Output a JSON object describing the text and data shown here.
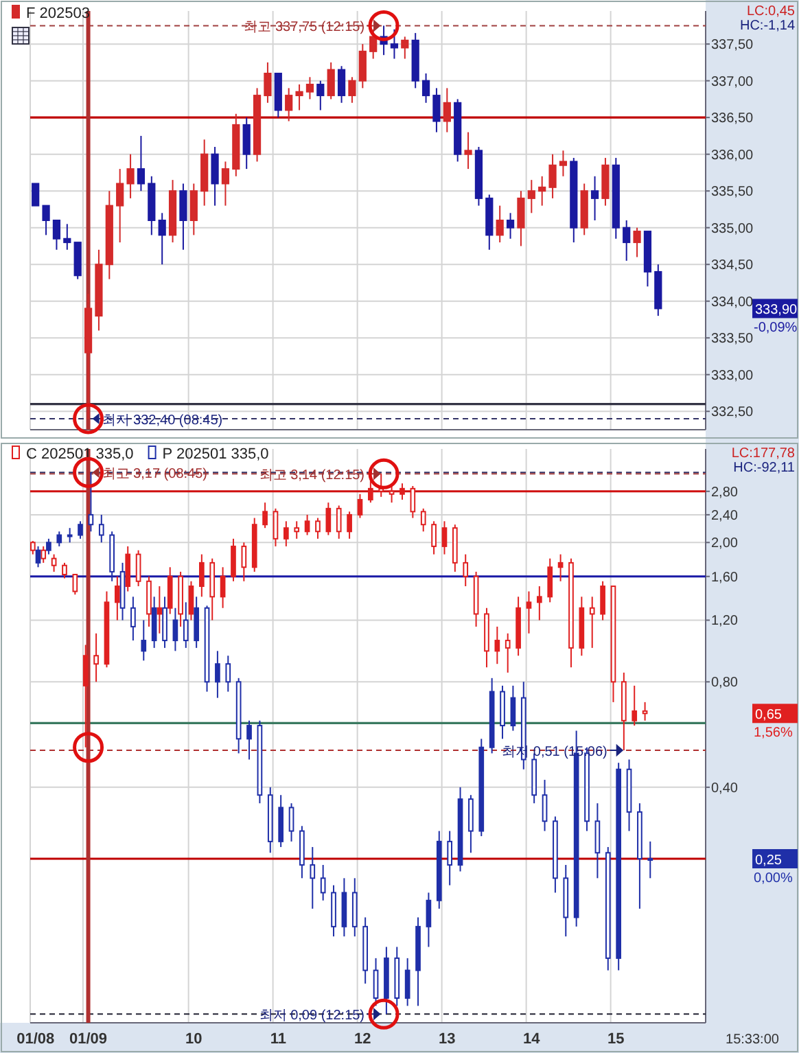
{
  "chart_data": [
    {
      "type": "candlestick",
      "legend": "top left",
      "grid": true,
      "tick_labels": "y",
      "categories": [
        "01/08",
        null,
        null,
        null,
        null,
        "01/09",
        null,
        null,
        null,
        null,
        null,
        null,
        null,
        null,
        null,
        "10",
        null,
        null,
        null,
        null,
        null,
        null,
        null,
        "11",
        null,
        null,
        null,
        null,
        null,
        null,
        null,
        "12",
        null,
        null,
        null,
        null,
        null,
        null,
        null,
        "13",
        null,
        null,
        null,
        null,
        null,
        null,
        null,
        "14",
        null,
        null,
        null,
        null,
        null,
        null,
        null,
        "15",
        null,
        null,
        null,
        null,
        null,
        null,
        null,
        null
      ],
      "ylim": [
        332.25,
        337.95
      ],
      "yticks": [
        {
          "value": 332.5,
          "label": "332,50"
        },
        {
          "value": 333,
          "label": "333,00"
        },
        {
          "value": 333.5,
          "label": "333,50"
        },
        {
          "value": 334,
          "label": "334,00"
        },
        {
          "value": 334.5,
          "label": "334,50"
        },
        {
          "value": 335,
          "label": "335,00"
        },
        {
          "value": 335.5,
          "label": "335,50"
        },
        {
          "value": 336,
          "label": "336,00"
        },
        {
          "value": 336.5,
          "label": "336,50"
        },
        {
          "value": 337,
          "label": "337,00"
        },
        {
          "value": 337.5,
          "label": "337,50"
        }
      ],
      "series": [
        {
          "name": "F 202503",
          "color": "#d42a2a",
          "ohlc": [
            [
              335.6,
              335.6,
              335.3,
              335.3
            ],
            [
              335.3,
              335.3,
              334.9,
              335.1
            ],
            [
              335.1,
              335.1,
              334.7,
              334.85
            ],
            [
              334.85,
              335.05,
              334.7,
              334.8
            ],
            [
              334.8,
              334.8,
              334.3,
              334.35
            ],
            [
              333.3,
              334.1,
              332.4,
              333.9
            ],
            [
              333.8,
              334.7,
              333.6,
              334.5
            ],
            [
              334.5,
              335.5,
              334.3,
              335.3
            ],
            [
              335.3,
              335.8,
              334.8,
              335.6
            ],
            [
              335.6,
              336,
              335.4,
              335.8
            ],
            [
              335.8,
              336.25,
              335.5,
              335.6
            ],
            [
              335.6,
              335.7,
              334.9,
              335.1
            ],
            [
              335.1,
              335.2,
              334.5,
              334.9
            ],
            [
              334.9,
              335.65,
              334.8,
              335.5
            ],
            [
              335.5,
              335.6,
              334.7,
              335.1
            ],
            [
              335.1,
              335.6,
              334.9,
              335.5
            ],
            [
              335.5,
              336.2,
              335.3,
              336
            ],
            [
              336,
              336.1,
              335.3,
              335.6
            ],
            [
              335.6,
              335.9,
              335.3,
              335.8
            ],
            [
              335.8,
              336.55,
              335.7,
              336.4
            ],
            [
              336.4,
              336.5,
              335.8,
              336
            ],
            [
              336,
              336.9,
              335.9,
              336.8
            ],
            [
              336.8,
              337.25,
              336.7,
              337.1
            ],
            [
              337.1,
              337.1,
              336.5,
              336.6
            ],
            [
              336.6,
              336.9,
              336.45,
              336.8
            ],
            [
              336.8,
              336.95,
              336.6,
              336.85
            ],
            [
              336.85,
              337.05,
              336.75,
              336.95
            ],
            [
              336.95,
              337,
              336.6,
              336.8
            ],
            [
              336.8,
              337.25,
              336.75,
              337.15
            ],
            [
              337.15,
              337.2,
              336.7,
              336.8
            ],
            [
              336.8,
              337.05,
              336.7,
              337
            ],
            [
              337,
              337.5,
              336.9,
              337.4
            ],
            [
              337.4,
              337.7,
              337.3,
              337.6
            ],
            [
              337.6,
              337.75,
              337.35,
              337.5
            ],
            [
              337.5,
              337.7,
              337.3,
              337.45
            ],
            [
              337.45,
              337.6,
              337.3,
              337.55
            ],
            [
              337.55,
              337.65,
              336.9,
              337
            ],
            [
              337,
              337.1,
              336.7,
              336.8
            ],
            [
              336.8,
              336.9,
              336.3,
              336.45
            ],
            [
              336.45,
              336.9,
              336.3,
              336.7
            ],
            [
              336.7,
              336.75,
              335.9,
              336
            ],
            [
              336,
              336.3,
              335.8,
              336.05
            ],
            [
              336.05,
              336.1,
              335.3,
              335.4
            ],
            [
              335.4,
              335.45,
              334.7,
              334.9
            ],
            [
              334.9,
              335.3,
              334.8,
              335.1
            ],
            [
              335.1,
              335.2,
              334.85,
              335
            ],
            [
              335,
              335.5,
              334.75,
              335.4
            ],
            [
              335.4,
              335.65,
              335.2,
              335.5
            ],
            [
              335.5,
              335.7,
              335.3,
              335.55
            ],
            [
              335.55,
              336,
              335.4,
              335.85
            ],
            [
              335.85,
              336.05,
              335.7,
              335.9
            ],
            [
              335.9,
              335.95,
              334.8,
              335
            ],
            [
              335,
              335.6,
              334.9,
              335.5
            ],
            [
              335.5,
              335.7,
              335.1,
              335.4
            ],
            [
              335.4,
              335.95,
              335.3,
              335.85
            ],
            [
              335.85,
              335.95,
              334.85,
              335
            ],
            [
              335,
              335.1,
              334.55,
              334.8
            ],
            [
              334.8,
              335,
              334.6,
              334.95
            ],
            [
              334.95,
              334.95,
              334.2,
              334.4
            ],
            [
              334.4,
              334.5,
              333.8,
              333.9
            ],
            null,
            null,
            null,
            null
          ],
          "colors": [
            "#1a1aa0",
            "#1a1aa0",
            "#1a1aa0",
            "#1a1aa0",
            "#1a1aa0",
            "#d42a2a",
            "#d42a2a",
            "#d42a2a",
            "#d42a2a",
            "#d42a2a",
            "#1a1aa0",
            "#1a1aa0",
            "#1a1aa0",
            "#d42a2a",
            "#1a1aa0",
            "#d42a2a",
            "#d42a2a",
            "#1a1aa0",
            "#d42a2a",
            "#d42a2a",
            "#1a1aa0",
            "#d42a2a",
            "#d42a2a",
            "#1a1aa0",
            "#d42a2a",
            "#d42a2a",
            "#d42a2a",
            "#1a1aa0",
            "#d42a2a",
            "#1a1aa0",
            "#d42a2a",
            "#d42a2a",
            "#d42a2a",
            "#1a1aa0",
            "#1a1aa0",
            "#d42a2a",
            "#1a1aa0",
            "#1a1aa0",
            "#1a1aa0",
            "#d42a2a",
            "#1a1aa0",
            "#d42a2a",
            "#1a1aa0",
            "#1a1aa0",
            "#d42a2a",
            "#1a1aa0",
            "#d42a2a",
            "#d42a2a",
            "#d42a2a",
            "#d42a2a",
            "#d42a2a",
            "#1a1aa0",
            "#d42a2a",
            "#1a1aa0",
            "#d42a2a",
            "#1a1aa0",
            "#1a1aa0",
            "#d42a2a",
            "#1a1aa0",
            "#1a1aa0",
            null,
            null,
            null,
            null
          ]
        }
      ],
      "ref_lines": [
        {
          "axis": "y",
          "value": 336.5,
          "color": "#c00000"
        },
        {
          "axis": "y",
          "value": 332.6,
          "color": "#333344"
        },
        {
          "axis": "y",
          "value": 337.75,
          "color": "#a04040",
          "line_style": "dashed"
        },
        {
          "axis": "y",
          "value": 332.4,
          "color": "#333366",
          "line_style": "dashed"
        },
        {
          "axis": "x",
          "value": "01/09",
          "color": "#b03030"
        }
      ],
      "annotations": [
        "LC:0,45",
        "HC:-1,14",
        "333,90",
        "-0,09%",
        {
          "text": "최고 337,75 (12:15)",
          "y": 337.75
        },
        {
          "text": "최저 332,40 (08:45)",
          "y": 332.4
        }
      ]
    },
    {
      "type": "candlestick",
      "legend": "top left",
      "grid": true,
      "log": true,
      "xlabel": "15:33:00",
      "categories": [
        "01/08",
        null,
        null,
        null,
        null,
        "01/09",
        null,
        null,
        null,
        null,
        null,
        null,
        null,
        null,
        null,
        "10",
        null,
        null,
        null,
        null,
        null,
        null,
        null,
        "11",
        null,
        null,
        null,
        null,
        null,
        null,
        null,
        "12",
        null,
        null,
        null,
        null,
        null,
        null,
        null,
        "13",
        null,
        null,
        null,
        null,
        null,
        null,
        null,
        "14",
        null,
        null,
        null,
        null,
        null,
        null,
        null,
        "15",
        null,
        null,
        null,
        null,
        null,
        null,
        null,
        null
      ],
      "ylim": [
        0.085,
        3.7
      ],
      "yticks": [
        {
          "value": 0.4,
          "label": "0,40"
        },
        {
          "value": 0.8,
          "label": "0,80"
        },
        {
          "value": 1.2,
          "label": "1,20"
        },
        {
          "value": 1.6,
          "label": "1,60"
        },
        {
          "value": 2,
          "label": "2,00"
        },
        {
          "value": 2.4,
          "label": "2,40"
        },
        {
          "value": 2.8,
          "label": "2,80"
        }
      ],
      "series": [
        {
          "name": "C 202501 335,0",
          "color": "#e02020",
          "ohlc": [
            [
              2,
              2.02,
              1.85,
              1.9
            ],
            [
              1.9,
              1.95,
              1.75,
              1.8
            ],
            [
              1.8,
              1.85,
              1.65,
              1.72
            ],
            [
              1.72,
              1.75,
              1.58,
              1.62
            ],
            [
              1.62,
              1.62,
              1.42,
              1.45
            ],
            [
              0.78,
              1.02,
              0.52,
              0.95
            ],
            [
              0.95,
              1.1,
              0.8,
              0.9
            ],
            [
              0.9,
              1.45,
              0.88,
              1.35
            ],
            [
              1.35,
              1.6,
              1.2,
              1.5
            ],
            [
              1.5,
              1.95,
              1.45,
              1.85
            ],
            [
              1.85,
              1.9,
              1.5,
              1.55
            ],
            [
              1.55,
              1.6,
              1.15,
              1.25
            ],
            [
              1.25,
              1.5,
              1.1,
              1.3
            ],
            [
              1.3,
              1.7,
              1.25,
              1.6
            ],
            [
              1.6,
              1.65,
              1.15,
              1.25
            ],
            [
              1.25,
              1.55,
              1.2,
              1.5
            ],
            [
              1.5,
              1.85,
              1.4,
              1.75
            ],
            [
              1.75,
              1.8,
              1.2,
              1.4
            ],
            [
              1.4,
              1.7,
              1.3,
              1.6
            ],
            [
              1.6,
              2.05,
              1.55,
              1.95
            ],
            [
              1.95,
              2,
              1.55,
              1.7
            ],
            [
              1.7,
              2.35,
              1.65,
              2.25
            ],
            [
              2.25,
              2.6,
              2.2,
              2.45
            ],
            [
              2.45,
              2.5,
              1.95,
              2.05
            ],
            [
              2.05,
              2.3,
              1.95,
              2.2
            ],
            [
              2.2,
              2.3,
              2.05,
              2.15
            ],
            [
              2.15,
              2.4,
              2.1,
              2.3
            ],
            [
              2.3,
              2.35,
              2.05,
              2.15
            ],
            [
              2.15,
              2.6,
              2.1,
              2.5
            ],
            [
              2.5,
              2.55,
              2.05,
              2.15
            ],
            [
              2.15,
              2.45,
              2.05,
              2.4
            ],
            [
              2.4,
              2.75,
              2.35,
              2.65
            ],
            [
              2.65,
              3,
              2.6,
              2.85
            ],
            [
              2.85,
              3.14,
              2.7,
              2.8
            ],
            [
              2.8,
              2.95,
              2.6,
              2.75
            ],
            [
              2.75,
              2.95,
              2.65,
              2.85
            ],
            [
              2.85,
              2.9,
              2.35,
              2.45
            ],
            [
              2.45,
              2.5,
              2.15,
              2.25
            ],
            [
              2.25,
              2.3,
              1.85,
              1.95
            ],
            [
              1.95,
              2.3,
              1.85,
              2.2
            ],
            [
              2.2,
              2.25,
              1.65,
              1.75
            ],
            [
              1.75,
              1.85,
              1.5,
              1.6
            ],
            [
              1.6,
              1.65,
              1.15,
              1.25
            ],
            [
              1.25,
              1.3,
              0.88,
              0.98
            ],
            [
              0.98,
              1.15,
              0.9,
              1.05
            ],
            [
              1.05,
              1.1,
              0.85,
              1
            ],
            [
              1,
              1.4,
              0.95,
              1.3
            ],
            [
              1.3,
              1.45,
              1.1,
              1.35
            ],
            [
              1.35,
              1.5,
              1.2,
              1.4
            ],
            [
              1.4,
              1.8,
              1.35,
              1.7
            ],
            [
              1.7,
              1.85,
              1.55,
              1.75
            ],
            [
              1.75,
              1.8,
              0.88,
              1
            ],
            [
              1,
              1.4,
              0.95,
              1.3
            ],
            [
              1.3,
              1.4,
              1,
              1.25
            ],
            [
              1.25,
              1.55,
              1.2,
              1.5
            ],
            [
              1.5,
              1.5,
              0.7,
              0.8
            ],
            [
              0.8,
              0.85,
              0.51,
              0.62
            ],
            [
              0.62,
              0.78,
              0.6,
              0.66
            ],
            [
              0.66,
              0.7,
              0.62,
              0.65
            ],
            null,
            null,
            null,
            null,
            null
          ]
        },
        {
          "name": "P 202501 335,0",
          "color": "#1f2fa8",
          "ohlc": [
            [
              1.75,
              1.95,
              1.7,
              1.9
            ],
            [
              1.9,
              2.05,
              1.85,
              2
            ],
            [
              2,
              2.15,
              1.95,
              2.1
            ],
            [
              2.1,
              2.2,
              2,
              2.1
            ],
            [
              2.1,
              2.3,
              2.05,
              2.25
            ],
            [
              2.4,
              3.17,
              2.15,
              2.25
            ],
            [
              2.25,
              2.4,
              2,
              2.1
            ],
            [
              2.1,
              2.15,
              1.55,
              1.65
            ],
            [
              1.65,
              1.75,
              1.2,
              1.3
            ],
            [
              1.3,
              1.4,
              1.05,
              1.15
            ],
            [
              0.98,
              1.2,
              0.92,
              1.05
            ],
            [
              1.05,
              1.4,
              1,
              1.3
            ],
            [
              1.3,
              1.4,
              1,
              1.05
            ],
            [
              1.05,
              1.3,
              0.98,
              1.2
            ],
            [
              1.2,
              1.35,
              1,
              1.05
            ],
            [
              1.05,
              1.4,
              1,
              1.3
            ],
            [
              1.3,
              1.32,
              0.75,
              0.8
            ],
            [
              0.8,
              0.98,
              0.72,
              0.9
            ],
            [
              0.9,
              0.95,
              0.75,
              0.8
            ],
            [
              0.8,
              0.82,
              0.5,
              0.55
            ],
            [
              0.55,
              0.62,
              0.48,
              0.6
            ],
            [
              0.6,
              0.62,
              0.36,
              0.38
            ],
            [
              0.38,
              0.4,
              0.26,
              0.28
            ],
            [
              0.28,
              0.38,
              0.27,
              0.35
            ],
            [
              0.35,
              0.36,
              0.28,
              0.3
            ],
            [
              0.3,
              0.31,
              0.22,
              0.24
            ],
            [
              0.24,
              0.27,
              0.18,
              0.22
            ],
            [
              0.22,
              0.24,
              0.19,
              0.2
            ],
            [
              0.2,
              0.21,
              0.15,
              0.16
            ],
            [
              0.16,
              0.22,
              0.15,
              0.2
            ],
            [
              0.2,
              0.22,
              0.15,
              0.16
            ],
            [
              0.16,
              0.17,
              0.11,
              0.12
            ],
            [
              0.12,
              0.13,
              0.095,
              0.1
            ],
            [
              0.1,
              0.14,
              0.09,
              0.13
            ],
            [
              0.13,
              0.14,
              0.095,
              0.1
            ],
            [
              0.1,
              0.13,
              0.095,
              0.12
            ],
            [
              0.12,
              0.17,
              0.095,
              0.16
            ],
            [
              0.16,
              0.2,
              0.14,
              0.19
            ],
            [
              0.19,
              0.3,
              0.18,
              0.28
            ],
            [
              0.28,
              0.3,
              0.21,
              0.24
            ],
            [
              0.24,
              0.4,
              0.23,
              0.37
            ],
            [
              0.37,
              0.38,
              0.26,
              0.3
            ],
            [
              0.3,
              0.55,
              0.29,
              0.52
            ],
            [
              0.52,
              0.82,
              0.5,
              0.75
            ],
            [
              0.75,
              0.78,
              0.55,
              0.6
            ],
            [
              0.6,
              0.78,
              0.58,
              0.72
            ],
            [
              0.72,
              0.8,
              0.45,
              0.48
            ],
            [
              0.48,
              0.5,
              0.36,
              0.38
            ],
            [
              0.38,
              0.42,
              0.3,
              0.32
            ],
            [
              0.32,
              0.33,
              0.2,
              0.22
            ],
            [
              0.22,
              0.24,
              0.15,
              0.17
            ],
            [
              0.17,
              0.58,
              0.16,
              0.5
            ],
            [
              0.5,
              0.52,
              0.3,
              0.32
            ],
            [
              0.32,
              0.36,
              0.22,
              0.26
            ],
            [
              0.26,
              0.27,
              0.12,
              0.13
            ],
            [
              0.13,
              0.47,
              0.12,
              0.45
            ],
            [
              0.45,
              0.48,
              0.3,
              0.34
            ],
            [
              0.34,
              0.36,
              0.18,
              0.25
            ],
            [
              0.25,
              0.28,
              0.22,
              0.25
            ],
            null,
            null,
            null,
            null,
            null
          ]
        }
      ],
      "ref_lines": [
        {
          "axis": "y",
          "value": 2.8,
          "color": "#d01010"
        },
        {
          "axis": "y",
          "value": 1.6,
          "color": "#1a1aa6"
        },
        {
          "axis": "y",
          "value": 0.61,
          "color": "#3a7a60"
        },
        {
          "axis": "y",
          "value": 0.25,
          "color": "#c00000"
        },
        {
          "axis": "y",
          "value": 3.17,
          "color": "#333366",
          "line_style": "dashed"
        },
        {
          "axis": "y",
          "value": 3.14,
          "color": "#a04040",
          "line_style": "dashed"
        },
        {
          "axis": "y",
          "value": 0.51,
          "color": "#b03030",
          "line_style": "dashed"
        },
        {
          "axis": "y",
          "value": 0.09,
          "color": "#222233",
          "line_style": "dashed"
        },
        {
          "axis": "x",
          "value": "01/09",
          "color": "#b03030"
        }
      ],
      "annotations": [
        "LC:177,78",
        "HC:-92,11",
        "0,65",
        "1,56%",
        "0,25",
        "0,00%",
        {
          "text": "최고 3,17 (08:45)",
          "y": 3.17
        },
        {
          "text": "최고 3,14 (12:15)",
          "y": 3.14
        },
        {
          "text": "최저 0,51 (15:06)",
          "y": 0.51
        },
        {
          "text": "최저 0,09 (12:15)",
          "y": 0.09
        }
      ]
    }
  ]
}
